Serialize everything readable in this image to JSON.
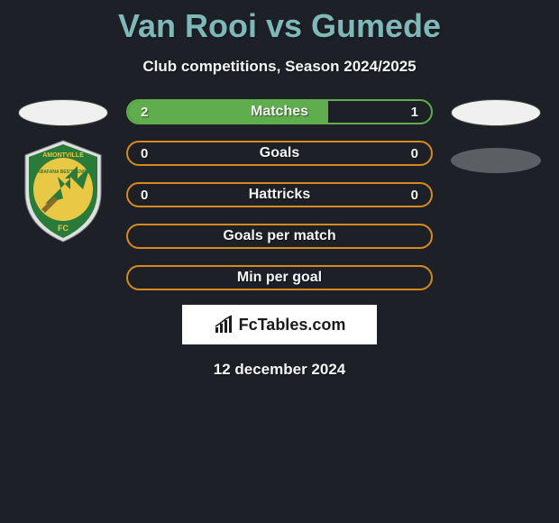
{
  "header": {
    "title": "Van Rooi vs Gumede",
    "title_color": "#7fb8b8",
    "subtitle": "Club competitions, Season 2024/2025"
  },
  "background_color": "#1d2026",
  "stats": [
    {
      "label": "Matches",
      "left_value": "2",
      "right_value": "1",
      "border_color": "#60ad4d",
      "left_fill_color": "#60ad4d",
      "left_fill_pct": 66,
      "right_fill_color": "transparent",
      "right_fill_pct": 34
    },
    {
      "label": "Goals",
      "left_value": "0",
      "right_value": "0",
      "border_color": "#d68a1e",
      "left_fill_color": "transparent",
      "left_fill_pct": 50,
      "right_fill_color": "transparent",
      "right_fill_pct": 50
    },
    {
      "label": "Hattricks",
      "left_value": "0",
      "right_value": "0",
      "border_color": "#d68a1e",
      "left_fill_color": "transparent",
      "left_fill_pct": 50,
      "right_fill_color": "transparent",
      "right_fill_pct": 50
    },
    {
      "label": "Goals per match",
      "left_value": "",
      "right_value": "",
      "border_color": "#d68a1e",
      "left_fill_color": "transparent",
      "left_fill_pct": 50,
      "right_fill_color": "transparent",
      "right_fill_pct": 50
    },
    {
      "label": "Min per goal",
      "left_value": "",
      "right_value": "",
      "border_color": "#d68a1e",
      "left_fill_color": "transparent",
      "left_fill_pct": 50,
      "right_fill_color": "transparent",
      "right_fill_pct": 50
    }
  ],
  "left_team": {
    "logo_colors": {
      "outer": "#e0e0e0",
      "ring": "#2a7a3a",
      "inner": "#e8c845",
      "arrow": "#2a7a3a"
    },
    "logo_text_top": "AMONTVILLE",
    "logo_text_mid": "ABAFANA BES'THENDE",
    "logo_text_bottom": "FC"
  },
  "footer": {
    "brand": "FcTables.com",
    "date": "12 december 2024"
  }
}
